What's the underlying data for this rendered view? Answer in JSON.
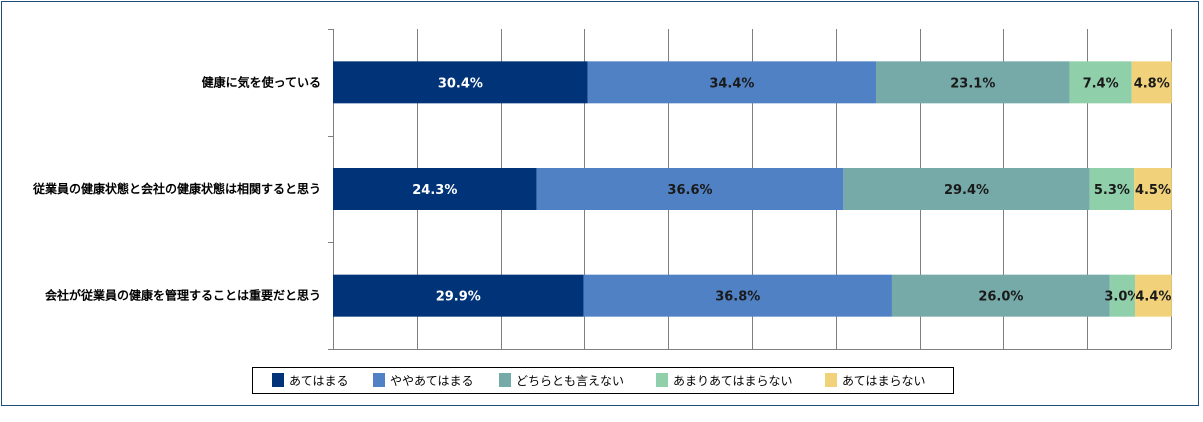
{
  "chart_data": {
    "type": "bar",
    "orientation": "horizontal",
    "stacked": true,
    "percent": true,
    "categories": [
      "健康に気を使っている",
      "従業員の健康状態と会社の健康状態は相関すると思う",
      "会社が従業員の健康を管理することは重要だと思う"
    ],
    "series": [
      {
        "name": "あてはまる",
        "values": [
          30.4,
          24.3,
          29.9
        ],
        "color": "#003378",
        "label_color": "#ffffff"
      },
      {
        "name": "ややあてはまる",
        "values": [
          34.4,
          36.6,
          36.8
        ],
        "color": "#4f81c4",
        "label_color": "#1a1a1a"
      },
      {
        "name": "どちらとも言えない",
        "values": [
          23.1,
          29.4,
          26.0
        ],
        "color": "#76aaa8",
        "label_color": "#1a1a1a"
      },
      {
        "name": "あまりあてはまらない",
        "values": [
          7.4,
          5.3,
          3.0
        ],
        "color": "#8fcfaa",
        "label_color": "#1a1a1a"
      },
      {
        "name": "あてはまらない",
        "values": [
          4.8,
          4.5,
          4.4
        ],
        "color": "#f1d27a",
        "label_color": "#1a1a1a"
      }
    ],
    "data_labels": [
      [
        "30.4%",
        "24.3%",
        "29.9%"
      ],
      [
        "34.4%",
        "36.6%",
        "36.8%"
      ],
      [
        "23.1%",
        "29.4%",
        "26.0%"
      ],
      [
        "7.4%",
        "5.3%",
        "3.0%"
      ],
      [
        "4.8%",
        "4.5%",
        "4.4%"
      ]
    ],
    "xlim": [
      0,
      100
    ],
    "grid": true,
    "legend_position": "bottom",
    "title": "",
    "xlabel": "",
    "ylabel": ""
  },
  "colors": {
    "frame_border": "#1f4e79",
    "gridline": "#7f7f7f"
  }
}
